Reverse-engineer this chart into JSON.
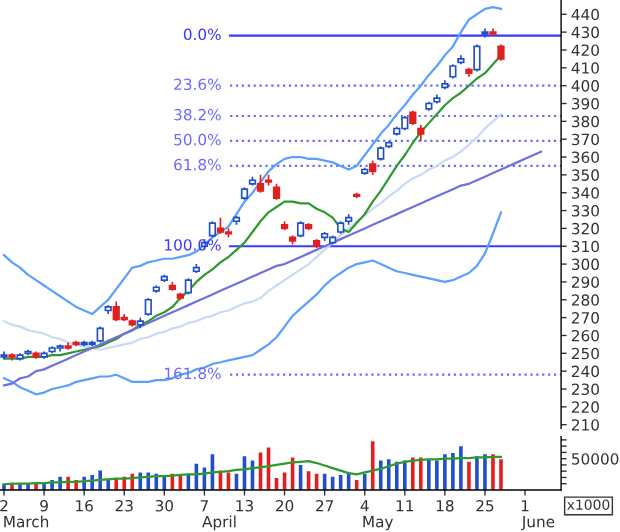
{
  "chart_data": [
    {
      "type": "candlestick",
      "categories": [
        "2",
        null,
        null,
        null,
        null,
        "9",
        null,
        null,
        null,
        null,
        "16",
        null,
        null,
        null,
        null,
        "23",
        null,
        null,
        null,
        null,
        "30",
        null,
        null,
        null,
        null,
        "7",
        null,
        null,
        null,
        null,
        "13",
        null,
        null,
        null,
        null,
        "20",
        null,
        null,
        null,
        null,
        "27",
        null,
        null,
        null,
        null,
        "4",
        null,
        null,
        null,
        null,
        "11",
        null,
        null,
        null,
        null,
        "18",
        null,
        null,
        null,
        null,
        "25",
        null,
        null,
        null,
        null,
        "1",
        null,
        null,
        null,
        null
      ],
      "ohlc": [
        [
          248,
          251,
          247,
          249
        ],
        [
          249,
          250,
          246,
          248
        ],
        [
          247,
          250,
          246,
          249
        ],
        [
          250,
          252,
          249,
          251
        ],
        [
          250,
          251,
          247,
          248
        ],
        [
          248,
          251,
          247,
          250
        ],
        [
          251,
          254,
          250,
          253
        ],
        [
          253,
          255,
          251,
          254
        ],
        [
          254,
          256,
          252,
          253
        ],
        [
          256,
          257,
          254,
          255
        ],
        [
          255,
          257,
          254,
          256
        ],
        [
          255,
          257,
          254,
          256
        ],
        [
          257,
          265,
          256,
          264
        ],
        [
          274,
          277,
          272,
          276
        ],
        [
          276,
          279,
          268,
          269
        ],
        [
          270,
          272,
          268,
          269
        ],
        [
          268,
          269,
          265,
          266
        ],
        [
          266,
          270,
          264,
          268
        ],
        [
          272,
          281,
          271,
          280
        ],
        [
          285,
          288,
          284,
          287
        ],
        [
          291,
          294,
          290,
          293
        ],
        [
          288,
          290,
          285,
          286
        ],
        [
          283,
          284,
          280,
          281
        ],
        [
          284,
          292,
          283,
          291
        ],
        [
          296,
          300,
          295,
          298
        ],
        [
          310,
          314,
          308,
          312
        ],
        [
          316,
          324,
          315,
          323
        ],
        [
          320,
          326,
          317,
          318
        ],
        [
          318,
          320,
          315,
          317
        ],
        [
          324,
          327,
          322,
          326
        ],
        [
          337,
          343,
          336,
          342
        ],
        [
          345,
          349,
          344,
          347
        ],
        [
          345,
          350,
          340,
          341
        ],
        [
          347,
          350,
          344,
          346
        ],
        [
          343,
          345,
          336,
          337
        ],
        [
          322,
          324,
          319,
          320
        ],
        [
          315,
          316,
          311,
          313
        ],
        [
          316,
          324,
          315,
          323
        ],
        [
          322,
          323,
          319,
          320
        ],
        [
          313,
          314,
          309,
          310
        ],
        [
          315,
          318,
          313,
          317
        ],
        [
          312,
          316,
          311,
          315
        ],
        [
          318,
          324,
          317,
          323
        ],
        [
          324,
          328,
          322,
          326
        ],
        [
          339,
          340,
          337,
          338
        ],
        [
          351,
          354,
          350,
          353
        ],
        [
          356,
          358,
          350,
          352
        ],
        [
          359,
          366,
          358,
          365
        ],
        [
          366,
          369,
          365,
          368
        ],
        [
          373,
          377,
          372,
          376
        ],
        [
          376,
          383,
          375,
          382
        ],
        [
          385,
          386,
          378,
          379
        ],
        [
          376,
          378,
          369,
          373
        ],
        [
          387,
          391,
          386,
          390
        ],
        [
          391,
          395,
          390,
          393
        ],
        [
          399,
          403,
          398,
          401
        ],
        [
          405,
          412,
          404,
          411
        ],
        [
          413,
          417,
          412,
          415
        ],
        [
          409,
          410,
          405,
          407
        ],
        [
          409,
          423,
          408,
          422
        ],
        [
          429,
          432,
          427,
          430
        ],
        [
          430,
          432,
          428,
          429
        ],
        [
          422,
          423,
          414,
          415
        ],
        null,
        null,
        null,
        null,
        null,
        null,
        null
      ],
      "colors": [
        "#2050c8",
        "#e02020",
        "#2050c8",
        "#2050c8",
        "#e02020",
        "#2050c8",
        "#2050c8",
        "#2050c8",
        "#e02020",
        "#e02020",
        "#2050c8",
        "#2050c8",
        "#2050c8",
        "#2050c8",
        "#e02020",
        "#e02020",
        "#e02020",
        "#2050c8",
        "#2050c8",
        "#2050c8",
        "#2050c8",
        "#e02020",
        "#e02020",
        "#2050c8",
        "#2050c8",
        "#2050c8",
        "#2050c8",
        "#e02020",
        "#e02020",
        "#2050c8",
        "#2050c8",
        "#2050c8",
        "#e02020",
        "#e02020",
        "#e02020",
        "#e02020",
        "#e02020",
        "#2050c8",
        "#e02020",
        "#e02020",
        "#2050c8",
        "#2050c8",
        "#2050c8",
        "#2050c8",
        "#e02020",
        "#2050c8",
        "#e02020",
        "#2050c8",
        "#2050c8",
        "#2050c8",
        "#2050c8",
        "#e02020",
        "#e02020",
        "#2050c8",
        "#2050c8",
        "#2050c8",
        "#2050c8",
        "#2050c8",
        "#e02020",
        "#2050c8",
        "#2050c8",
        "#e02020",
        "#e02020",
        null,
        null,
        null,
        null,
        null,
        null,
        null
      ],
      "series": [
        {
          "type": "line",
          "color": "#5aa0ff",
          "values": [
            305,
            301,
            298,
            294,
            291,
            288,
            285,
            282,
            279,
            276,
            274,
            272,
            276,
            280,
            286,
            292,
            298,
            299,
            301,
            302,
            303,
            303,
            304,
            305,
            307,
            311,
            315,
            318,
            321,
            328,
            335,
            340,
            346,
            352,
            356,
            359,
            360,
            360,
            359,
            359,
            358,
            357,
            355,
            353,
            355,
            361,
            367,
            373,
            378,
            384,
            389,
            395,
            400,
            406,
            411,
            417,
            422,
            430,
            437,
            440,
            443,
            444,
            443,
            null,
            null,
            null,
            null,
            null,
            null,
            null
          ]
        },
        {
          "type": "line",
          "color": "#5aa0ff",
          "values": [
            236,
            234,
            231,
            229,
            227,
            228,
            230,
            231,
            232,
            234,
            235,
            236,
            237,
            237,
            238,
            236,
            234,
            234,
            234,
            235,
            235,
            236,
            238,
            239,
            241,
            242,
            244,
            245,
            246,
            247,
            248,
            249,
            252,
            255,
            259,
            265,
            271,
            275,
            279,
            283,
            288,
            292,
            295,
            298,
            300,
            301,
            302,
            300,
            298,
            296,
            295,
            294,
            293,
            292,
            291,
            290,
            291,
            293,
            295,
            299,
            306,
            317,
            329,
            null,
            null,
            null,
            null,
            null,
            null,
            null
          ]
        },
        {
          "type": "line",
          "color": "#c8daf5",
          "values": [
            268,
            266,
            265,
            263,
            262,
            261,
            259,
            258,
            256,
            255,
            254,
            253,
            252,
            253,
            254,
            255,
            256,
            258,
            259,
            261,
            262,
            264,
            265,
            267,
            268,
            270,
            271,
            273,
            274,
            276,
            278,
            279,
            281,
            285,
            288,
            291,
            294,
            297,
            300,
            304,
            308,
            312,
            316,
            320,
            324,
            327,
            331,
            334,
            338,
            341,
            345,
            348,
            350,
            353,
            355,
            358,
            360,
            363,
            367,
            371,
            376,
            380,
            384,
            null,
            null,
            null,
            null,
            null,
            null,
            null
          ]
        },
        {
          "type": "line",
          "color": "#2e9a2e",
          "values": [
            247,
            247,
            247,
            248,
            248,
            248,
            249,
            249,
            250,
            251,
            252,
            253,
            254,
            256,
            258,
            261,
            263,
            266,
            268,
            271,
            273,
            276,
            281,
            285,
            290,
            294,
            297,
            301,
            304,
            308,
            312,
            318,
            324,
            329,
            332,
            335,
            335,
            334,
            334,
            331,
            329,
            326,
            320,
            318,
            323,
            328,
            335,
            341,
            348,
            355,
            361,
            368,
            374,
            379,
            384,
            389,
            393,
            396,
            400,
            404,
            407,
            412,
            417,
            null,
            null,
            null,
            null,
            null,
            null,
            null
          ]
        },
        {
          "type": "line",
          "color": "#7070e0",
          "values": [
            232,
            233,
            236,
            237,
            240,
            241,
            243,
            245,
            247,
            249,
            251,
            253,
            255,
            257,
            259,
            261,
            263,
            265,
            267,
            269,
            271,
            273,
            275,
            277,
            279,
            281,
            283,
            285,
            287,
            289,
            291,
            293,
            295,
            297,
            299,
            300,
            302,
            304,
            306,
            308,
            310,
            312,
            314,
            316,
            318,
            320,
            322,
            324,
            326,
            328,
            330,
            332,
            334,
            336,
            338,
            340,
            342,
            344,
            345,
            347,
            349,
            351,
            353,
            355,
            357,
            359,
            361,
            363,
            null,
            null
          ]
        }
      ],
      "ylim": [
        208,
        448
      ],
      "yticks": [
        210,
        220,
        230,
        240,
        250,
        260,
        270,
        280,
        290,
        300,
        310,
        320,
        330,
        340,
        350,
        360,
        370,
        380,
        390,
        400,
        410,
        420,
        430,
        440
      ],
      "tick_labels": "y",
      "ref_lines": [
        {
          "axis": "y",
          "value": 428,
          "color": "#3a3aff",
          "line_style": "solid"
        },
        {
          "axis": "y",
          "value": 400,
          "color": "#6a6aff",
          "line_style": "dotted"
        },
        {
          "axis": "y",
          "value": 383,
          "color": "#6a6aff",
          "line_style": "dotted"
        },
        {
          "axis": "y",
          "value": 369,
          "color": "#6a6aff",
          "line_style": "dotted"
        },
        {
          "axis": "y",
          "value": 355,
          "color": "#6a6aff",
          "line_style": "dotted"
        },
        {
          "axis": "y",
          "value": 310,
          "color": "#3a3aff",
          "line_style": "solid"
        },
        {
          "axis": "y",
          "value": 238,
          "color": "#6a6aff",
          "line_style": "dotted"
        }
      ],
      "annotations": [
        "0.0%",
        "23.6%",
        "38.2%",
        "50.0%",
        "61.8%",
        "100.0%",
        "161.8%"
      ]
    },
    {
      "type": "bar",
      "categories": [
        "2",
        null,
        null,
        null,
        null,
        "9",
        null,
        null,
        null,
        null,
        "16",
        null,
        null,
        null,
        null,
        "23",
        null,
        null,
        null,
        null,
        "30",
        null,
        null,
        null,
        null,
        "7",
        null,
        null,
        null,
        null,
        "13",
        null,
        null,
        null,
        null,
        "20",
        null,
        null,
        null,
        null,
        "27",
        null,
        null,
        null,
        null,
        "4",
        null,
        null,
        null,
        null,
        "11",
        null,
        null,
        null,
        null,
        "18",
        null,
        null,
        null,
        null,
        "25",
        null,
        null,
        null,
        null,
        "1",
        null,
        null,
        null,
        null
      ],
      "series": [
        {
          "type": "bar",
          "values": [
            10000,
            10000,
            10000,
            10000,
            10000,
            12000,
            16000,
            21000,
            21000,
            16000,
            21000,
            24000,
            31000,
            18000,
            18000,
            21000,
            26000,
            28000,
            28000,
            26000,
            24000,
            26000,
            24000,
            26000,
            42000,
            36000,
            57000,
            31000,
            28000,
            26000,
            54000,
            47000,
            60000,
            68000,
            19000,
            28000,
            52000,
            40000,
            30000,
            26000,
            26000,
            21000,
            24000,
            28000,
            16000,
            26000,
            78000,
            47000,
            49000,
            45000,
            47000,
            52000,
            52000,
            50000,
            47000,
            57000,
            59000,
            70000,
            45000,
            54000,
            57000,
            57000,
            49000,
            null,
            null,
            null,
            null,
            null,
            null,
            null
          ],
          "colors": [
            "#2050c8",
            "#e02020",
            "#2050c8",
            "#2050c8",
            "#e02020",
            "#2050c8",
            "#2050c8",
            "#2050c8",
            "#e02020",
            "#e02020",
            "#2050c8",
            "#2050c8",
            "#2050c8",
            "#2050c8",
            "#e02020",
            "#e02020",
            "#e02020",
            "#2050c8",
            "#2050c8",
            "#2050c8",
            "#2050c8",
            "#e02020",
            "#e02020",
            "#2050c8",
            "#2050c8",
            "#2050c8",
            "#2050c8",
            "#e02020",
            "#e02020",
            "#2050c8",
            "#2050c8",
            "#2050c8",
            "#e02020",
            "#e02020",
            "#e02020",
            "#e02020",
            "#e02020",
            "#2050c8",
            "#e02020",
            "#e02020",
            "#2050c8",
            "#2050c8",
            "#2050c8",
            "#2050c8",
            "#e02020",
            "#2050c8",
            "#e02020",
            "#2050c8",
            "#2050c8",
            "#2050c8",
            "#2050c8",
            "#e02020",
            "#e02020",
            "#2050c8",
            "#2050c8",
            "#2050c8",
            "#2050c8",
            "#2050c8",
            "#e02020",
            "#2050c8",
            "#2050c8",
            "#e02020",
            "#e02020",
            null,
            null,
            null,
            null,
            null,
            null,
            null
          ]
        },
        {
          "type": "line",
          "color": "#2e9a2e",
          "values": [
            9000,
            10000,
            10000,
            10000,
            11000,
            11000,
            12000,
            12000,
            13000,
            13000,
            14000,
            15000,
            16000,
            17000,
            18000,
            18000,
            19000,
            20000,
            21000,
            22000,
            22000,
            23000,
            24000,
            25000,
            25000,
            26000,
            28000,
            29000,
            30000,
            32000,
            33000,
            35000,
            36000,
            38000,
            40000,
            42000,
            44000,
            45000,
            46000,
            43000,
            39000,
            35000,
            31000,
            27000,
            25000,
            28000,
            31000,
            34000,
            38000,
            42000,
            45000,
            47000,
            48000,
            49000,
            49000,
            50000,
            50000,
            51000,
            51000,
            52000,
            52000,
            53000,
            53000,
            null,
            null,
            null,
            null,
            null,
            null,
            null
          ]
        }
      ],
      "ylim": [
        0,
        85000
      ],
      "yticks": [
        {
          "value": 10000,
          "label": null
        },
        {
          "value": 20000,
          "label": null
        },
        {
          "value": 30000,
          "label": null
        },
        {
          "value": 40000,
          "label": null
        },
        {
          "value": 50000,
          "label": "50000"
        },
        {
          "value": 60000,
          "label": null
        },
        {
          "value": 70000,
          "label": null
        },
        {
          "value": 80000,
          "label": null
        }
      ],
      "ylabel": "x1000",
      "annotations": [
        "March",
        "April",
        "May",
        "June"
      ]
    }
  ]
}
